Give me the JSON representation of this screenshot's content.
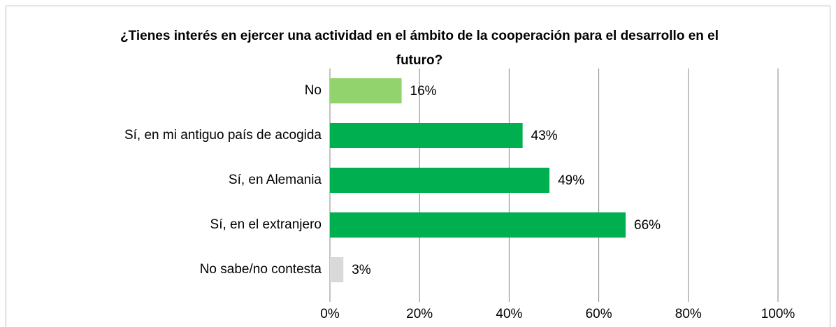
{
  "chart_data": {
    "type": "bar",
    "orientation": "horizontal",
    "title": "¿Tienes interés en ejercer una actividad en el ámbito de la cooperación para el desarrollo en el futuro?",
    "categories": [
      "No",
      "Sí, en mi antiguo país de acogida",
      "Sí, en Alemania",
      "Sí, en el extranjero",
      "No sabe/no contesta"
    ],
    "values": [
      16,
      43,
      49,
      66,
      3
    ],
    "value_labels": [
      "16%",
      "43%",
      "49%",
      "66%",
      "3%"
    ],
    "colors": [
      "#92d36e",
      "#00b050",
      "#00b050",
      "#00b050",
      "#d9d9d9"
    ],
    "xlim": [
      0,
      100
    ],
    "xticks": [
      {
        "value": 0,
        "label": "0%"
      },
      {
        "value": 20,
        "label": "20%"
      },
      {
        "value": 40,
        "label": "40%"
      },
      {
        "value": 60,
        "label": "60%"
      },
      {
        "value": 80,
        "label": "80%"
      },
      {
        "value": 100,
        "label": "100%"
      }
    ],
    "grid": true
  }
}
